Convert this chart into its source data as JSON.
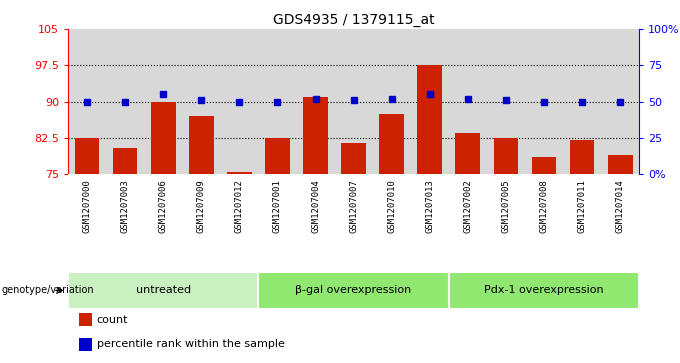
{
  "title": "GDS4935 / 1379115_at",
  "samples": [
    "GSM1207000",
    "GSM1207003",
    "GSM1207006",
    "GSM1207009",
    "GSM1207012",
    "GSM1207001",
    "GSM1207004",
    "GSM1207007",
    "GSM1207010",
    "GSM1207013",
    "GSM1207002",
    "GSM1207005",
    "GSM1207008",
    "GSM1207011",
    "GSM1207014"
  ],
  "counts": [
    82.5,
    80.5,
    90.0,
    87.0,
    75.5,
    82.5,
    91.0,
    81.5,
    87.5,
    97.5,
    83.5,
    82.5,
    78.5,
    82.0,
    79.0
  ],
  "percentile_ranks": [
    50,
    50,
    55,
    51,
    50,
    50,
    52,
    51,
    52,
    55,
    52,
    51,
    50,
    50,
    50
  ],
  "groups": [
    {
      "label": "untreated",
      "start": 0,
      "end": 5,
      "color": "#c8f0c0"
    },
    {
      "label": "β-gal overexpression",
      "start": 5,
      "end": 10,
      "color": "#90e870"
    },
    {
      "label": "Pdx-1 overexpression",
      "start": 10,
      "end": 15,
      "color": "#90e870"
    }
  ],
  "bar_color": "#cc2200",
  "dot_color": "#0000cc",
  "ylim_left": [
    75,
    105
  ],
  "ylim_right": [
    0,
    100
  ],
  "yticks_left": [
    75,
    82.5,
    90,
    97.5,
    105
  ],
  "ytick_labels_left": [
    "75",
    "82.5",
    "90",
    "97.5",
    "105"
  ],
  "yticks_right": [
    0,
    25,
    50,
    75,
    100
  ],
  "ytick_labels_right": [
    "0%",
    "25",
    "50",
    "75",
    "100%"
  ],
  "hlines": [
    82.5,
    90.0,
    97.5
  ],
  "plot_bg_color": "#d8d8d8",
  "sample_bg_color": "#d8d8d8",
  "legend_count_label": "count",
  "legend_pct_label": "percentile rank within the sample",
  "genotype_label": "genotype/variation"
}
